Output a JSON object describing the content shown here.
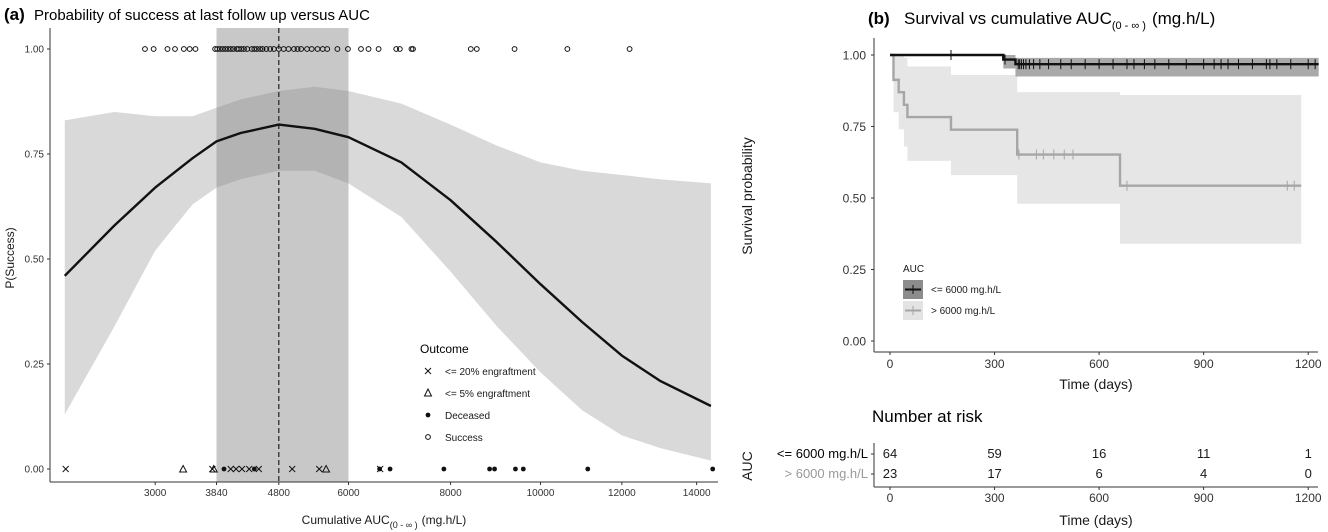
{
  "colors": {
    "ribbon": "#d9d9d9",
    "band": "#c8c8c8",
    "curve": "#111111",
    "km_low": "#111111",
    "km_high": "#a6a6a6",
    "km_low_ci": "#8c8c8c",
    "km_high_ci": "#e3e3e3"
  },
  "chart_data": [
    {
      "type": "scatter",
      "panel": "(a)",
      "title": "Probability of success at last follow up versus AUC",
      "ylabel": "P(Success)",
      "xlabel_main": "Cumulative AUC",
      "xlabel_sub": "(0 - ∞ )",
      "xlabel_unit": "(mg.h/L)",
      "x_scale": "sqrt",
      "xlim": [
        1800,
        14600
      ],
      "ylim": [
        0,
        1
      ],
      "x_ticks": [
        "3000",
        "3840",
        "4800",
        "6000",
        "8000",
        "10000",
        "12000",
        "14000"
      ],
      "y_ticks": [
        "0.00",
        "0.25",
        "0.50",
        "0.75",
        "1.00"
      ],
      "shaded_band": [
        3840,
        6000
      ],
      "vline": 4800,
      "fit": {
        "x": [
          1950,
          2500,
          3000,
          3500,
          3840,
          4200,
          4800,
          5400,
          6000,
          7000,
          8000,
          9000,
          10000,
          11000,
          12000,
          13000,
          14400
        ],
        "y": [
          0.46,
          0.58,
          0.67,
          0.74,
          0.78,
          0.8,
          0.82,
          0.81,
          0.79,
          0.73,
          0.64,
          0.54,
          0.44,
          0.35,
          0.27,
          0.21,
          0.15
        ],
        "lower": [
          0.13,
          0.34,
          0.52,
          0.63,
          0.67,
          0.69,
          0.71,
          0.71,
          0.68,
          0.6,
          0.47,
          0.34,
          0.23,
          0.14,
          0.08,
          0.05,
          0.02
        ],
        "upper": [
          0.83,
          0.85,
          0.84,
          0.84,
          0.86,
          0.88,
          0.9,
          0.91,
          0.9,
          0.87,
          0.82,
          0.77,
          0.73,
          0.71,
          0.7,
          0.69,
          0.68
        ]
      },
      "legend": {
        "title": "Outcome",
        "entries": [
          {
            "symbol": "x",
            "label": "<= 20% engraftment"
          },
          {
            "symbol": "triangle",
            "label": "<= 5% engraftment"
          },
          {
            "symbol": "dot",
            "label": "Deceased"
          },
          {
            "symbol": "circle",
            "label": "Success"
          }
        ]
      },
      "points": {
        "success": [
          2870,
          2980,
          3160,
          3260,
          3380,
          3460,
          3540,
          3820,
          3850,
          3890,
          3930,
          3970,
          4010,
          4050,
          4090,
          4140,
          4170,
          4210,
          4250,
          4300,
          4370,
          4410,
          4450,
          4500,
          4540,
          4600,
          4660,
          4720,
          4800,
          4880,
          4960,
          5050,
          5110,
          5170,
          5270,
          5350,
          5450,
          5540,
          5620,
          5800,
          5990,
          6230,
          6370,
          6560,
          6900,
          6970,
          7200,
          7230,
          8430,
          8560,
          9400,
          10640,
          12200
        ],
        "deceased": [
          3950,
          4410,
          6580,
          6780,
          7860,
          8840,
          8950,
          9420,
          9600,
          11140,
          14450
        ],
        "le20": [
          1960,
          3780,
          4050,
          4130,
          4220,
          4330,
          4480,
          5020,
          5480,
          6590
        ],
        "le5": [
          3370,
          3800,
          5600
        ]
      }
    },
    {
      "type": "line",
      "panel": "(b)",
      "title_main": "Survival vs cumulative AUC",
      "title_sub": "(0 - ∞ )",
      "title_unit": "(mg.h/L)",
      "ylabel": "Survival probability",
      "xlabel": "Time (days)",
      "xlim": [
        -50,
        1250
      ],
      "ylim": [
        0,
        1
      ],
      "x_ticks": [
        "0",
        "300",
        "600",
        "900",
        "1200"
      ],
      "y_ticks": [
        "0.00",
        "0.25",
        "0.50",
        "0.75",
        "1.00"
      ],
      "legend": {
        "title": "AUC",
        "entries": [
          {
            "name": "<= 6000 mg.h/L"
          },
          {
            "name": "> 6000 mg.h/L"
          }
        ]
      },
      "series": [
        {
          "name": "<= 6000 mg.h/L",
          "steps": [
            [
              0,
              1.0
            ],
            [
              325,
              0.984
            ],
            [
              360,
              0.968
            ],
            [
              1230,
              0.968
            ]
          ],
          "ci_steps": [
            [
              0,
              1.0,
              1.0
            ],
            [
              325,
              1.0,
              0.953
            ],
            [
              360,
              0.99,
              0.925
            ],
            [
              1230,
              0.99,
              0.925
            ]
          ],
          "censor": [
            175,
            330,
            368,
            372,
            377,
            383,
            390,
            400,
            412,
            430,
            455,
            490,
            520,
            560,
            600,
            640,
            680,
            700,
            730,
            760,
            800,
            850,
            900,
            930,
            950,
            970,
            1000,
            1040,
            1080,
            1090,
            1110,
            1150,
            1200,
            1220
          ]
        },
        {
          "name": "> 6000 mg.h/L",
          "steps": [
            [
              0,
              1.0
            ],
            [
              10,
              0.913
            ],
            [
              25,
              0.87
            ],
            [
              40,
              0.826
            ],
            [
              50,
              0.783
            ],
            [
              175,
              0.739
            ],
            [
              365,
              0.652
            ],
            [
              660,
              0.543
            ],
            [
              1180,
              0.543
            ]
          ],
          "ci_steps": [
            [
              0,
              1.0,
              1.0
            ],
            [
              10,
              1.0,
              0.8
            ],
            [
              25,
              1.0,
              0.74
            ],
            [
              40,
              0.99,
              0.68
            ],
            [
              50,
              0.96,
              0.63
            ],
            [
              175,
              0.93,
              0.58
            ],
            [
              365,
              0.87,
              0.48
            ],
            [
              660,
              0.86,
              0.34
            ],
            [
              1180,
              0.86,
              0.34
            ]
          ],
          "censor": [
            370,
            420,
            440,
            470,
            500,
            525,
            680,
            1140,
            1160
          ]
        }
      ]
    },
    {
      "type": "table",
      "title": "Number at risk",
      "row_axis_title": "AUC",
      "xlabel": "Time (days)",
      "times": [
        0,
        300,
        600,
        900,
        1200
      ],
      "x_ticks": [
        "0",
        "300",
        "600",
        "900",
        "1200"
      ],
      "rows": [
        {
          "label": "<= 6000 mg.h/L",
          "values": [
            "64",
            "59",
            "16",
            "11",
            "1"
          ]
        },
        {
          "label": "> 6000 mg.h/L",
          "values": [
            "23",
            "17",
            "6",
            "4",
            "0"
          ]
        }
      ]
    }
  ]
}
